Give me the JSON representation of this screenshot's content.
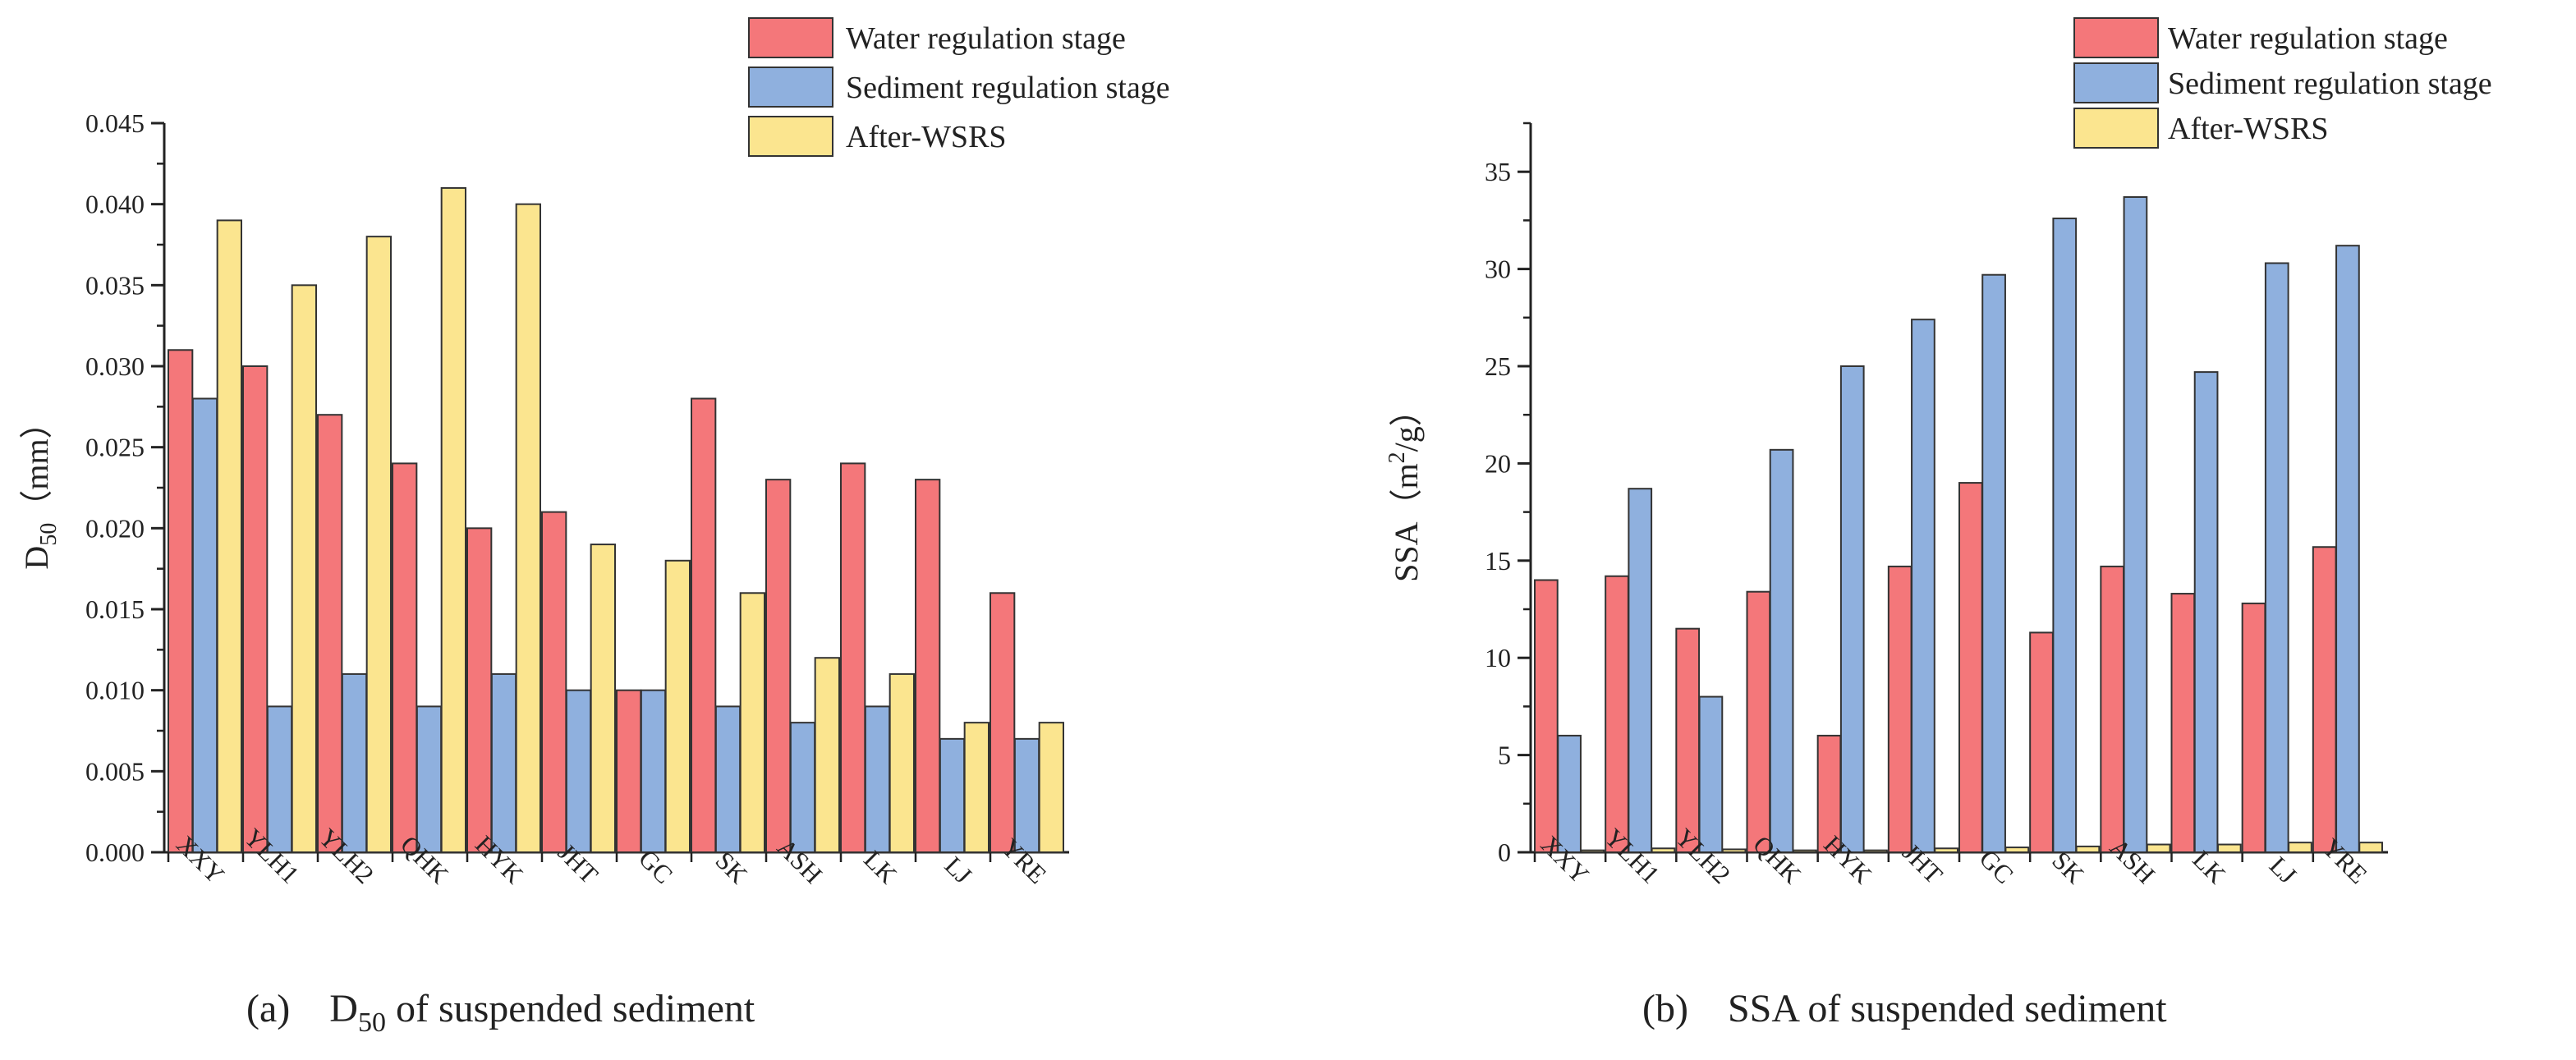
{
  "chart_data": [
    {
      "type": "bar",
      "caption_prefix": "(a)",
      "caption": "D",
      "caption_sub": "50",
      "caption_suffix": " of suspended sediment",
      "ylabel": "D",
      "ylabel_sub": "50",
      "ylabel_unit": "（mm）",
      "ylim": [
        0,
        0.045
      ],
      "yticks": [
        "0.000",
        "0.005",
        "0.010",
        "0.015",
        "0.020",
        "0.025",
        "0.030",
        "0.035",
        "0.040",
        "0.045"
      ],
      "categories": [
        "XXY",
        "YLH1",
        "YLH2",
        "QHK",
        "HYK",
        "JHT",
        "GC",
        "SK",
        "ASH",
        "LK",
        "LJ",
        "YRE"
      ],
      "series": [
        {
          "name": "Water regulation stage",
          "color": "#f4777a",
          "values": [
            0.031,
            0.03,
            0.027,
            0.024,
            0.02,
            0.021,
            0.01,
            0.028,
            0.023,
            0.024,
            0.023,
            0.016
          ]
        },
        {
          "name": "Sediment regulation stage",
          "color": "#8fb0de",
          "values": [
            0.028,
            0.009,
            0.011,
            0.009,
            0.011,
            0.01,
            0.01,
            0.009,
            0.008,
            0.009,
            0.007,
            0.007
          ]
        },
        {
          "name": "After-WSRS",
          "color": "#fbe58f",
          "values": [
            0.039,
            0.035,
            0.038,
            0.041,
            0.04,
            0.019,
            0.018,
            0.016,
            0.012,
            0.011,
            0.008,
            0.008
          ]
        }
      ],
      "legend": "top-right"
    },
    {
      "type": "bar",
      "caption_prefix": "(b)",
      "caption": "SSA of suspended sediment",
      "ylabel": "SSA（m",
      "ylabel_sup": "2",
      "ylabel_unit": "/g）",
      "ylim": [
        0,
        37.5
      ],
      "yticks": [
        "0",
        "5",
        "10",
        "15",
        "20",
        "25",
        "30",
        "35"
      ],
      "categories": [
        "XXY",
        "YLH1",
        "YLH2",
        "QHK",
        "HYK",
        "JHT",
        "GC",
        "SK",
        "ASH",
        "LK",
        "LJ",
        "YRE"
      ],
      "series": [
        {
          "name": "Water regulation stage",
          "color": "#f4777a",
          "values": [
            14.0,
            14.2,
            11.5,
            13.4,
            6.0,
            14.7,
            19.0,
            11.3,
            14.7,
            13.3,
            12.8,
            15.7
          ]
        },
        {
          "name": "Sediment regulation stage",
          "color": "#8fb0de",
          "values": [
            6.0,
            18.7,
            8.0,
            20.7,
            25.0,
            27.4,
            29.7,
            32.6,
            33.7,
            24.7,
            30.3,
            31.2
          ]
        },
        {
          "name": "After-WSRS",
          "color": "#fbe58f",
          "values": [
            0.1,
            0.2,
            0.15,
            0.1,
            0.1,
            0.2,
            0.25,
            0.3,
            0.4,
            0.4,
            0.5,
            0.5
          ]
        }
      ],
      "legend": "top-right"
    }
  ]
}
